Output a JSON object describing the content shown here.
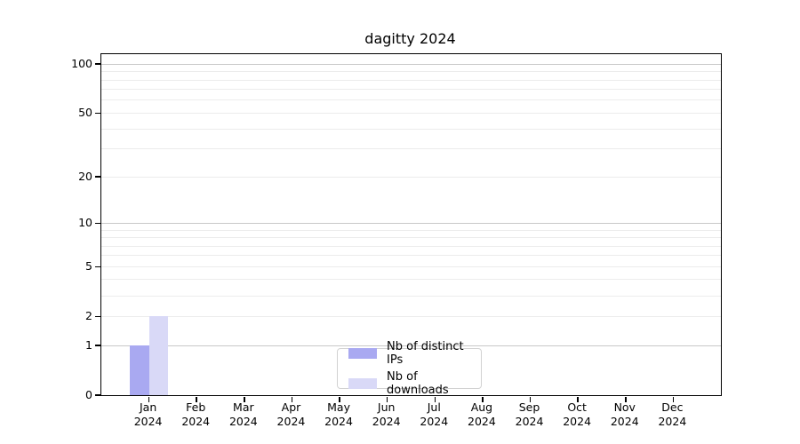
{
  "title": "dagitty 2024",
  "colors": {
    "background": "#ffffff",
    "axis": "#000000",
    "grid_major": "#c8c8c8",
    "grid_minor": "#ececec",
    "legend_border": "#d2d2d2",
    "bar_distinct_ips": "#a9a9f1",
    "bar_downloads": "#d9d9f7"
  },
  "chart_data": {
    "type": "bar",
    "title": "dagitty 2024",
    "categories": [
      {
        "month": "Jan",
        "year": "2024"
      },
      {
        "month": "Feb",
        "year": "2024"
      },
      {
        "month": "Mar",
        "year": "2024"
      },
      {
        "month": "Apr",
        "year": "2024"
      },
      {
        "month": "May",
        "year": "2024"
      },
      {
        "month": "Jun",
        "year": "2024"
      },
      {
        "month": "Jul",
        "year": "2024"
      },
      {
        "month": "Aug",
        "year": "2024"
      },
      {
        "month": "Sep",
        "year": "2024"
      },
      {
        "month": "Oct",
        "year": "2024"
      },
      {
        "month": "Nov",
        "year": "2024"
      },
      {
        "month": "Dec",
        "year": "2024"
      }
    ],
    "series": [
      {
        "name": "Nb of distinct IPs",
        "color": "#a9a9f1",
        "values": [
          1,
          0,
          0,
          0,
          0,
          0,
          0,
          0,
          0,
          0,
          0,
          0
        ]
      },
      {
        "name": "Nb of downloads",
        "color": "#d9d9f7",
        "values": [
          2,
          0,
          0,
          0,
          0,
          0,
          0,
          0,
          0,
          0,
          0,
          0
        ]
      }
    ],
    "xlabel": "",
    "ylabel": "",
    "y_scale": "log1p",
    "ylim": [
      0,
      115
    ],
    "y_ticks": [
      0,
      1,
      2,
      5,
      10,
      20,
      50,
      100
    ],
    "y_major_gridlines": [
      1,
      10,
      100
    ],
    "y_minor_gridlines": [
      2,
      3,
      4,
      5,
      6,
      7,
      8,
      9,
      20,
      30,
      40,
      50,
      60,
      70,
      80,
      90
    ],
    "grid": true,
    "legend_position": "bottom-center"
  }
}
